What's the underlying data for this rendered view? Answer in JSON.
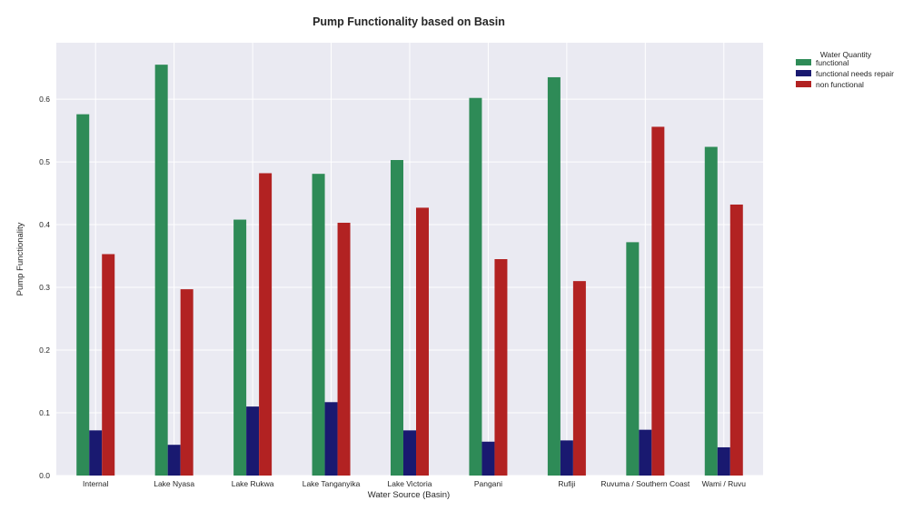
{
  "chart_data": {
    "type": "bar",
    "title": "Pump Functionality based on Basin",
    "xlabel": "Water Source (Basin)",
    "ylabel": "Pump Functionality",
    "ylim": [
      0,
      0.69
    ],
    "yticks": [
      "0.0",
      "0.1",
      "0.2",
      "0.3",
      "0.4",
      "0.5",
      "0.6"
    ],
    "grid": true,
    "legend_title": "Water Quantity",
    "legend_position": "outside-top-right",
    "categories": [
      "Internal",
      "Lake Nyasa",
      "Lake Rukwa",
      "Lake Tanganyika",
      "Lake Victoria",
      "Pangani",
      "Rufiji",
      "Ruvuma / Southern Coast",
      "Wami / Ruvu"
    ],
    "series": [
      {
        "name": "functional",
        "color": "#2e8b57",
        "values": [
          0.576,
          0.655,
          0.408,
          0.481,
          0.503,
          0.602,
          0.635,
          0.372,
          0.524
        ]
      },
      {
        "name": "functional needs repair",
        "color": "#191970",
        "values": [
          0.072,
          0.049,
          0.11,
          0.117,
          0.072,
          0.054,
          0.056,
          0.073,
          0.045
        ]
      },
      {
        "name": "non functional",
        "color": "#b22222",
        "values": [
          0.353,
          0.297,
          0.482,
          0.403,
          0.427,
          0.345,
          0.31,
          0.556,
          0.432
        ]
      }
    ],
    "background_color": "#eaeaf2",
    "grid_color": "#ffffff"
  }
}
